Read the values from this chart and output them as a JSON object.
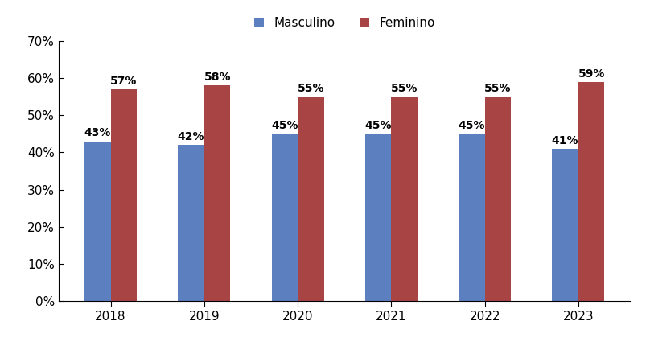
{
  "years": [
    "2018",
    "2019",
    "2020",
    "2021",
    "2022",
    "2023"
  ],
  "masculino": [
    43,
    42,
    45,
    45,
    45,
    41
  ],
  "feminino": [
    57,
    58,
    55,
    55,
    55,
    59
  ],
  "masculino_label": "Masculino",
  "feminino_label": "Feminino",
  "bar_color_masculino": "#5b7fbf",
  "bar_color_feminino": "#a84444",
  "ylim": [
    0,
    70
  ],
  "yticks": [
    0,
    10,
    20,
    30,
    40,
    50,
    60,
    70
  ],
  "bar_width": 0.28,
  "tick_fontsize": 11,
  "legend_fontsize": 11,
  "annotation_fontsize": 10
}
